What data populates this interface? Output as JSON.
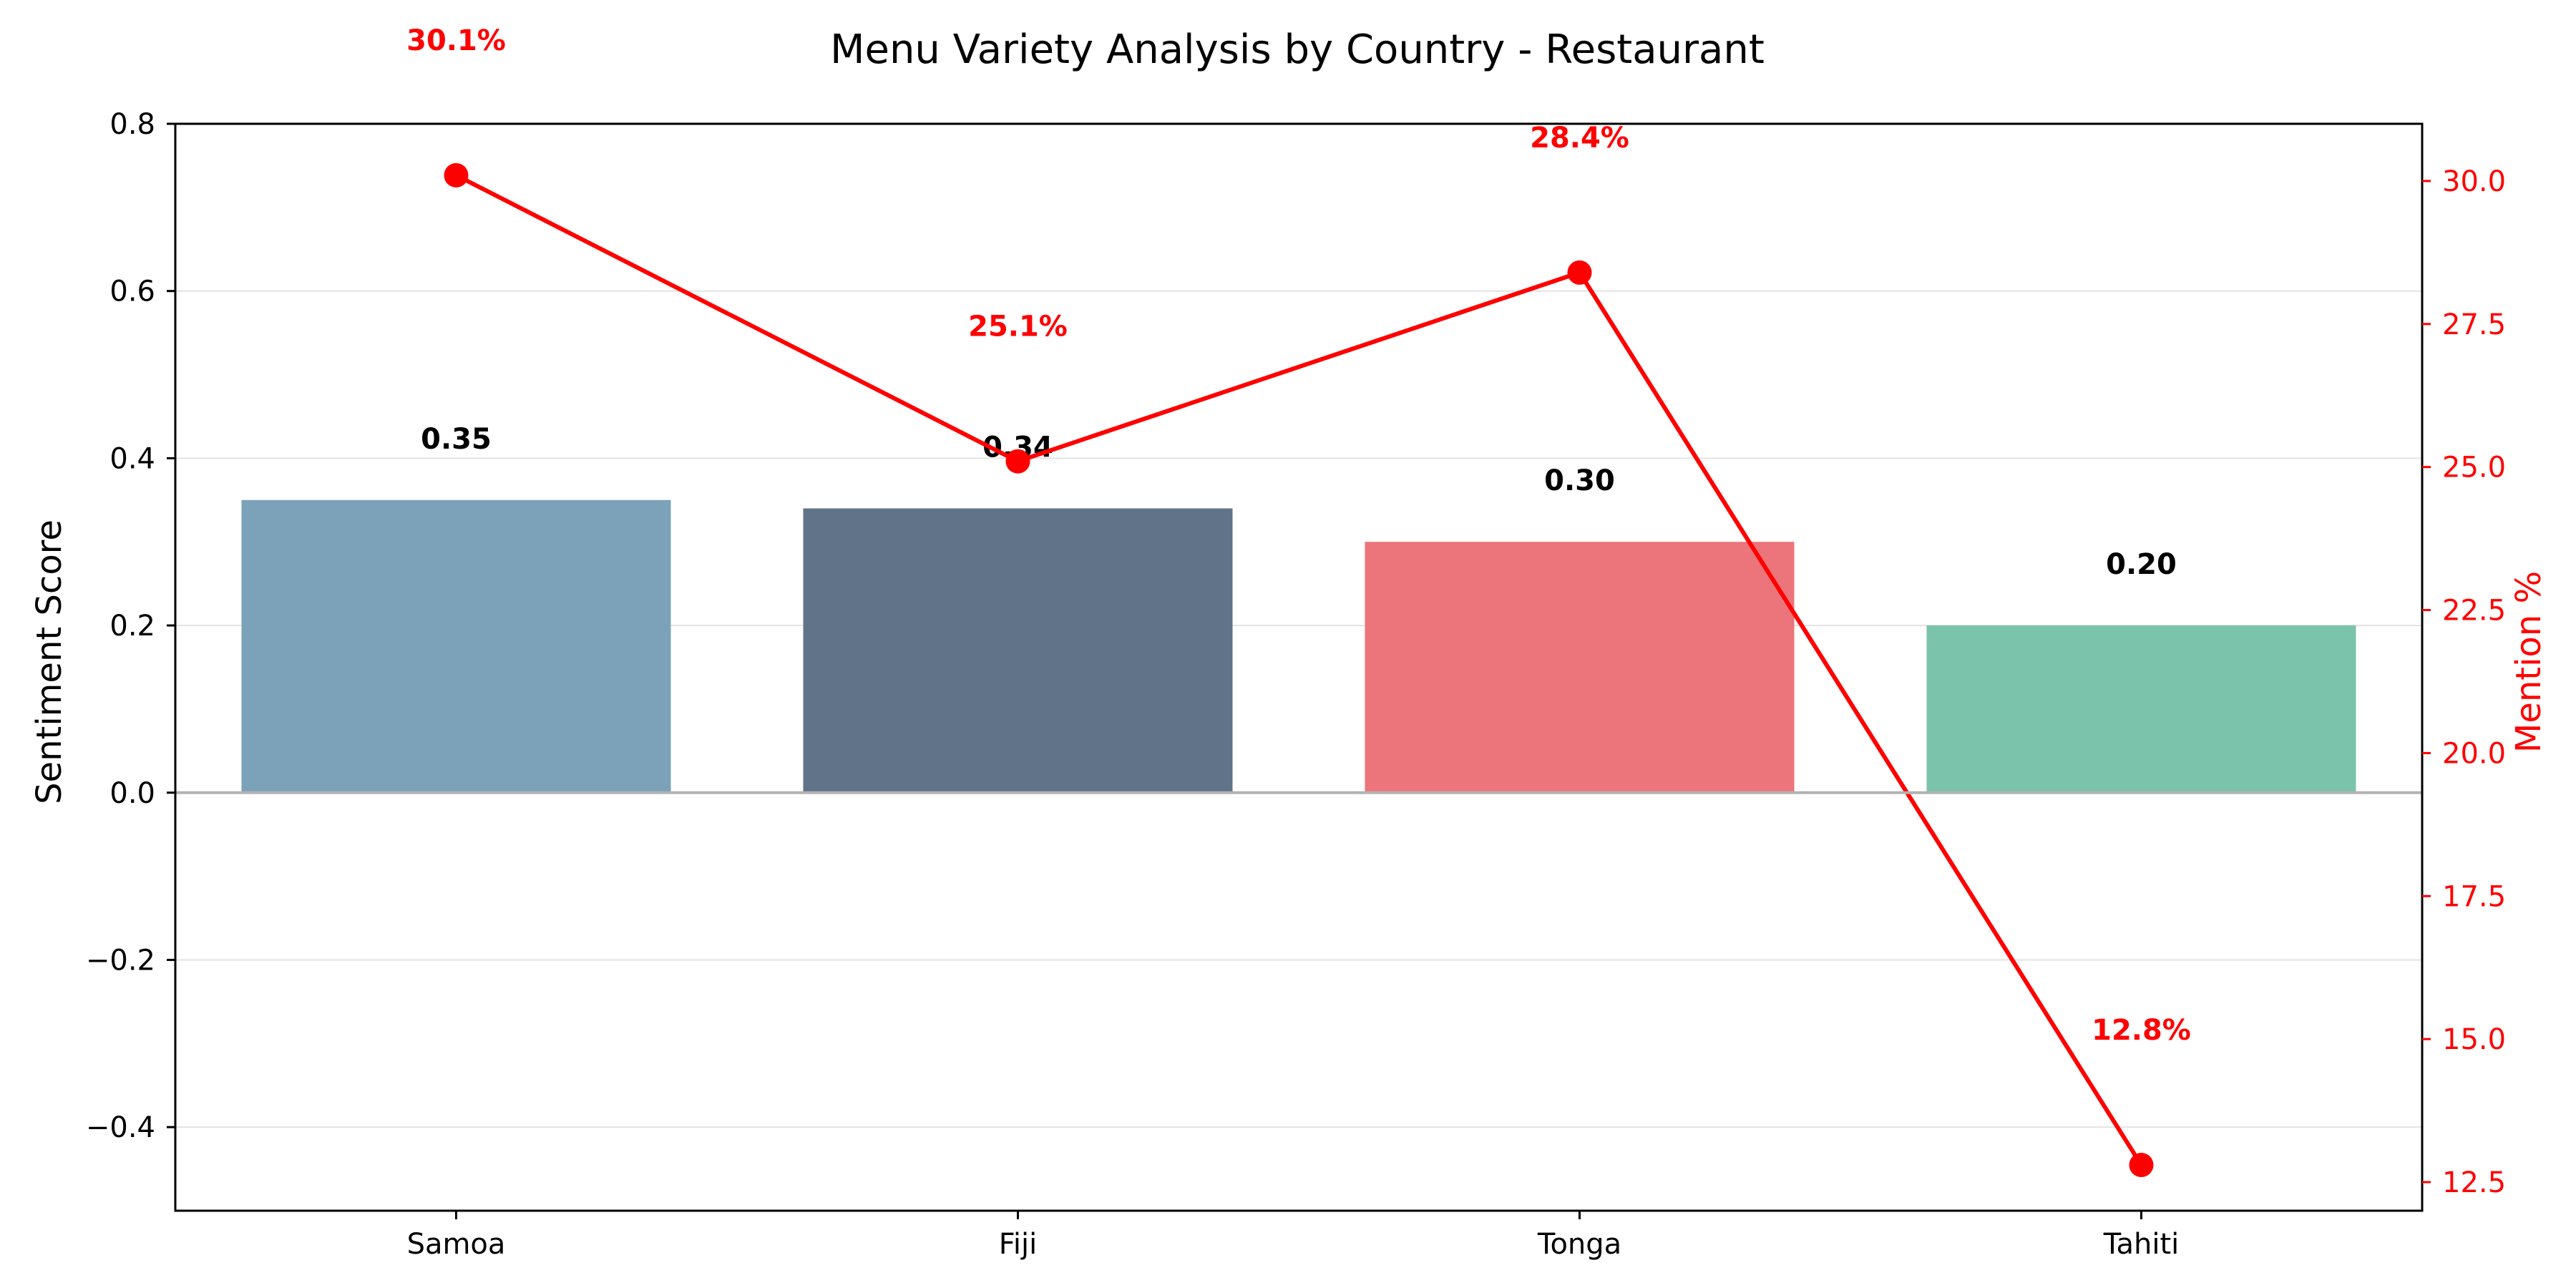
{
  "chart_data": {
    "type": "bar",
    "title": "Menu Variety Analysis by Country - Restaurant",
    "categories": [
      "Samoa",
      "Fiji",
      "Tonga",
      "Tahiti"
    ],
    "bar_series": {
      "name": "Sentiment Score",
      "values": [
        0.35,
        0.34,
        0.3,
        0.2
      ],
      "labels": [
        "0.35",
        "0.34",
        "0.30",
        "0.20"
      ],
      "colors": [
        "#7ba2b9",
        "#617389",
        "#ec747b",
        "#7bc3aa"
      ]
    },
    "line_series": {
      "name": "Mention %",
      "values": [
        30.1,
        25.1,
        28.4,
        12.8
      ],
      "labels": [
        "30.1%",
        "25.1%",
        "28.4%",
        "12.8%"
      ],
      "color": "#ff0000"
    },
    "ylabel_left": "Sentiment Score",
    "ylabel_right": "Mention %",
    "ylim_left": [
      -0.5,
      0.8
    ],
    "ylim_right": [
      12.0,
      31.0
    ],
    "yticks_left": [
      "0.8",
      "0.6",
      "0.4",
      "0.2",
      "0.0",
      "−0.2",
      "−0.4"
    ],
    "yticks_left_values": [
      0.8,
      0.6,
      0.4,
      0.2,
      0.0,
      -0.2,
      -0.4
    ],
    "yticks_right": [
      "30.0",
      "27.5",
      "25.0",
      "22.5",
      "20.0",
      "17.5",
      "15.0",
      "12.5"
    ],
    "yticks_right_values": [
      30.0,
      27.5,
      25.0,
      22.5,
      20.0,
      17.5,
      15.0,
      12.5
    ],
    "grid": "horizontal",
    "zero_line": true
  }
}
